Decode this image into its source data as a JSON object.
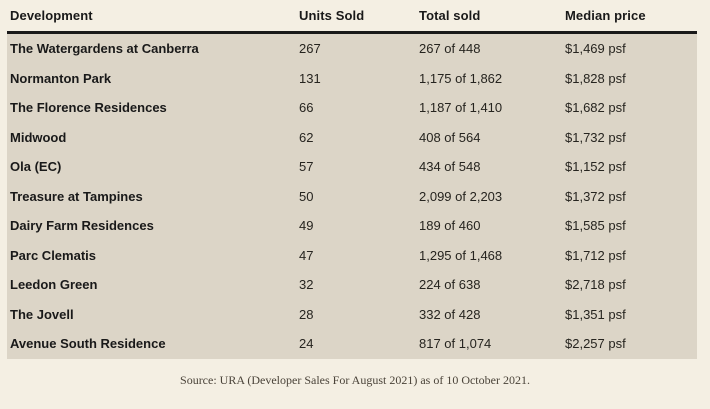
{
  "chart_data": {
    "type": "table",
    "columns": [
      "Development",
      "Units Sold",
      "Total sold",
      "Median price"
    ],
    "rows": [
      [
        "The Watergardens at Canberra",
        "267",
        "267 of 448",
        "$1,469 psf"
      ],
      [
        "Normanton Park",
        "131",
        "1,175 of 1,862",
        "$1,828 psf"
      ],
      [
        "The Florence Residences",
        "66",
        "1,187 of 1,410",
        "$1,682 psf"
      ],
      [
        "Midwood",
        "62",
        "408 of 564",
        "$1,732 psf"
      ],
      [
        "Ola (EC)",
        "57",
        "434 of 548",
        "$1,152 psf"
      ],
      [
        "Treasure at Tampines",
        "50",
        "2,099 of 2,203",
        "$1,372 psf"
      ],
      [
        "Dairy Farm Residences",
        "49",
        "189 of 460",
        "$1,585 psf"
      ],
      [
        "Parc Clematis",
        "47",
        "1,295 of 1,468",
        "$1,712 psf"
      ],
      [
        "Leedon Green",
        "32",
        "224 of 638",
        "$2,718 psf"
      ],
      [
        "The Jovell",
        "28",
        "332 of 428",
        "$1,351 psf"
      ],
      [
        "Avenue South Residence",
        "24",
        "817 of 1,074",
        "$2,257 psf"
      ]
    ],
    "source_note": "Source: URA (Developer Sales For August 2021) as of 10 October 2021."
  },
  "colors": {
    "page_bg": "#f4efe3",
    "row_bg": "#dcd5c7",
    "header_rule": "#191919",
    "text": "#191919",
    "source_text": "#4a4339"
  }
}
